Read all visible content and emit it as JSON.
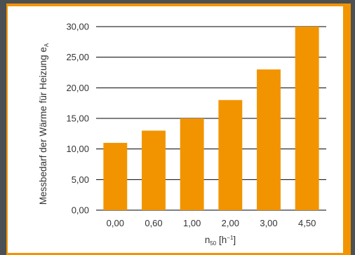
{
  "chart_data": {
    "type": "bar",
    "categories": [
      "0,00",
      "0,60",
      "1,00",
      "2,00",
      "3,00",
      "4,50"
    ],
    "values": [
      11,
      13,
      15,
      18,
      23,
      30
    ],
    "y_tick_labels": [
      "0,00",
      "5,00",
      "10,00",
      "15,00",
      "20,00",
      "25,00",
      "30,00"
    ],
    "y_ticks": [
      0,
      5,
      10,
      15,
      20,
      25,
      30
    ],
    "ylim": [
      0,
      30
    ],
    "ylabel": {
      "main": "Messbedarf der Wärme für Heizung e",
      "subscript": "A"
    },
    "xlabel": {
      "symbol": "n",
      "subscript": "50",
      "unit_open": " [h",
      "superscript": "−1",
      "unit_close": "]"
    },
    "grid": true,
    "legend": "none"
  },
  "colors": {
    "bar": "#f29400",
    "frame": "#f29400",
    "background": "#4b5054",
    "gridline": "#000000",
    "text": "#333333"
  }
}
